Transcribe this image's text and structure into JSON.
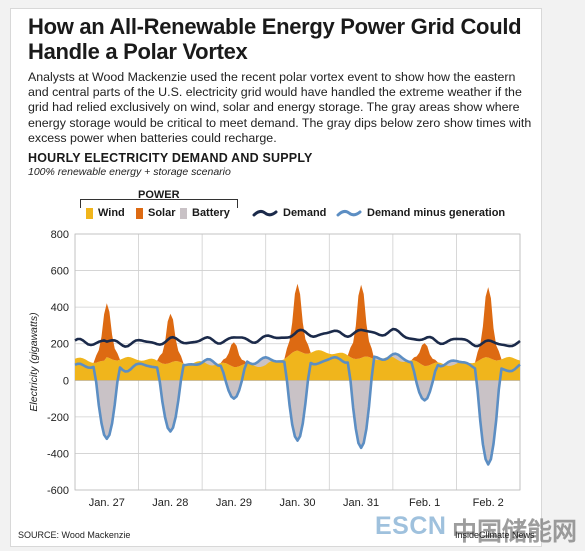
{
  "title": "How an All-Renewable Energy Power Grid Could Handle a Polar Vortex",
  "intro": "Analysts at Wood Mackenzie used the recent polar vortex event to show how the eastern and central parts of the U.S. electricity grid would have handled the extreme weather if the grid had relied exclusively on wind, solar and energy storage. The gray areas show where energy storage would be critical to meet demand. The gray dips below zero show times with excess power when batteries could recharge.",
  "footer": {
    "source": "SOURCE: Wood Mackenzie",
    "credit": "InsideClimate News"
  },
  "watermark": {
    "latin": "ESCN",
    "chinese": "中国储能网"
  },
  "colors": {
    "wind": "#f0b51c",
    "solar": "#dd6a12",
    "battery": "#c9c2c6",
    "demand": "#1b2a4a",
    "demand_minus_generation": "#5c8ec3",
    "grid": "#cfcfcf"
  },
  "chart_data": {
    "type": "area",
    "title": "HOURLY ELECTRICITY DEMAND AND SUPPLY",
    "subtitle": "100% renewable energy + storage scenario",
    "ylabel": "Electricity (gigawatts)",
    "ylim": [
      -600,
      800
    ],
    "yticks": [
      800,
      600,
      400,
      200,
      0,
      -200,
      -400,
      -600
    ],
    "xlim": [
      0,
      7
    ],
    "x_unit": "day index from Jan. 26 12:00 (hourly resolution)",
    "days": [
      {
        "label": "Jan. 27",
        "center": 0.5
      },
      {
        "label": "Jan. 28",
        "center": 1.5
      },
      {
        "label": "Jan. 29",
        "center": 2.5
      },
      {
        "label": "Jan. 30",
        "center": 3.5
      },
      {
        "label": "Jan. 31",
        "center": 4.5
      },
      {
        "label": "Feb. 1",
        "center": 5.5
      },
      {
        "label": "Feb. 2",
        "center": 6.5
      }
    ],
    "grid": true,
    "legend": {
      "group_label": "POWER",
      "items": [
        {
          "name": "Wind",
          "kind": "area"
        },
        {
          "name": "Solar",
          "kind": "area"
        },
        {
          "name": "Battery",
          "kind": "area"
        },
        {
          "name": "Demand",
          "kind": "line"
        },
        {
          "name": "Demand minus generation",
          "kind": "line"
        }
      ],
      "position": "top"
    },
    "series": [
      {
        "name": "Wind",
        "daily_level": [
          118,
          95,
          82,
          155,
          120,
          88,
          118
        ]
      },
      {
        "name": "Solar",
        "daily_peak": [
          295,
          268,
          135,
          365,
          400,
          125,
          385
        ],
        "daily_hump": [
          90,
          80,
          40,
          110,
          120,
          38,
          115
        ]
      },
      {
        "name": "Demand",
        "daily_base": [
          205,
          215,
          225,
          255,
          262,
          218,
          200
        ]
      },
      {
        "name": "Demand minus generation",
        "daily_min": [
          -320,
          -280,
          -100,
          -330,
          -370,
          -110,
          -460
        ]
      }
    ]
  }
}
